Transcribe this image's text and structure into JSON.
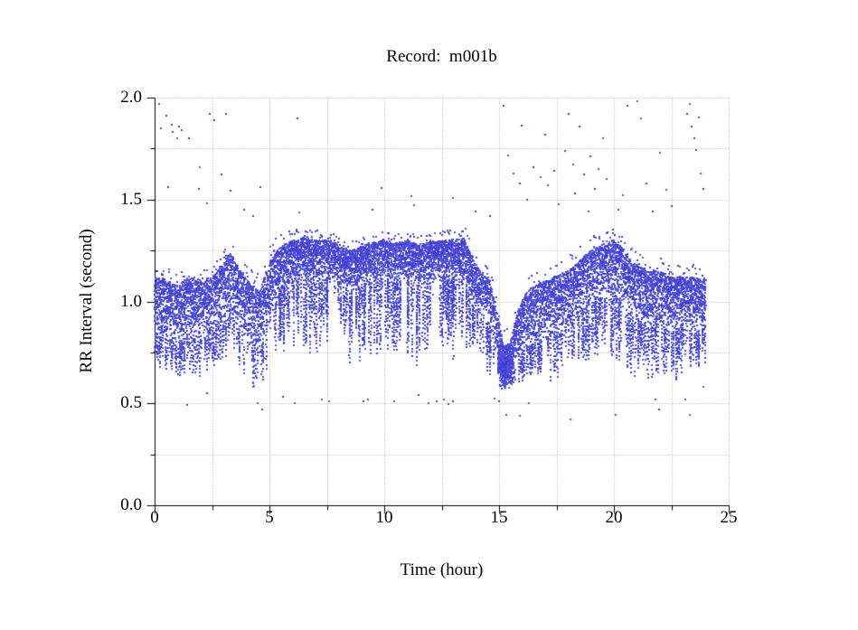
{
  "title": "Record:  m001b",
  "colors": {
    "point": "#3e3ed4",
    "point_light": "#5555de",
    "grid": "#a9a9a9",
    "axis": "#000000",
    "text": "#000000",
    "background": "#ffffff"
  },
  "chart_data": {
    "type": "scatter",
    "title": "Record:  m001b",
    "xlabel": "Time (hour)",
    "ylabel": "RR Interval (second)",
    "xlim": [
      0,
      25
    ],
    "ylim": [
      0.0,
      2.0
    ],
    "x_major_ticks": [
      0,
      5,
      10,
      15,
      20,
      25
    ],
    "x_tick_labels": [
      "0",
      "5",
      "10",
      "15",
      "20",
      "25"
    ],
    "x_minor_step": 2.5,
    "y_major_ticks": [
      0.0,
      0.5,
      1.0,
      1.5,
      2.0
    ],
    "y_tick_labels": [
      "0.0",
      "0.5",
      "1.0",
      "1.5",
      "2.0"
    ],
    "y_minor_step": 0.25,
    "grid": {
      "style": "dotted",
      "at_minor_ticks": true,
      "at_major_ticks": true
    },
    "data_time_range_hours": [
      0,
      24
    ],
    "description": "24-hour RR-interval tachogram. Dense band ~0.8-1.15 s during hours 0-4.5, elevated ~1.1-1.3 s during hours 5-13.5 with frequent short dips to 0.7-0.9 s, sharp bradycardia-like dip to ~0.6 s near hour 15-15.7, recovery ~0.8-1.1 s, rising again ~1.0-1.3 s hours 18.5-20.5, then ~0.85-1.15 s to hour 24. Sparse outliers at 1.45-2.0 s (mostly hours 0-3 and 15-24) and 0.42-0.58 s.",
    "band_profile_fields": [
      "t_hour",
      "core_low_s",
      "core_high_s",
      "top_s",
      "streak_min_s"
    ],
    "band_profile": [
      [
        0.0,
        0.85,
        1.12,
        1.18,
        0.7
      ],
      [
        0.5,
        0.82,
        1.1,
        1.16,
        0.65
      ],
      [
        1.0,
        0.8,
        1.08,
        1.15,
        0.62
      ],
      [
        1.5,
        0.85,
        1.12,
        1.18,
        0.66
      ],
      [
        2.0,
        0.82,
        1.1,
        1.16,
        0.6
      ],
      [
        2.5,
        0.85,
        1.12,
        1.18,
        0.64
      ],
      [
        3.0,
        0.9,
        1.18,
        1.25,
        0.68
      ],
      [
        3.3,
        0.95,
        1.24,
        1.3,
        0.72
      ],
      [
        3.7,
        0.88,
        1.15,
        1.22,
        0.66
      ],
      [
        4.2,
        0.78,
        1.08,
        1.16,
        0.58
      ],
      [
        4.6,
        0.74,
        1.05,
        1.14,
        0.55
      ],
      [
        5.0,
        0.95,
        1.2,
        1.28,
        0.7
      ],
      [
        5.5,
        1.05,
        1.27,
        1.33,
        0.75
      ],
      [
        6.0,
        1.1,
        1.3,
        1.35,
        0.78
      ],
      [
        6.5,
        1.12,
        1.31,
        1.36,
        0.75
      ],
      [
        7.0,
        1.1,
        1.3,
        1.35,
        0.72
      ],
      [
        7.5,
        1.12,
        1.3,
        1.34,
        0.8
      ],
      [
        8.0,
        1.1,
        1.28,
        1.33,
        0.72
      ],
      [
        8.5,
        1.05,
        1.25,
        1.3,
        0.68
      ],
      [
        9.0,
        1.08,
        1.27,
        1.32,
        0.7
      ],
      [
        9.5,
        1.1,
        1.29,
        1.34,
        0.75
      ],
      [
        10.0,
        1.12,
        1.3,
        1.35,
        0.72
      ],
      [
        10.5,
        1.1,
        1.28,
        1.33,
        0.75
      ],
      [
        11.0,
        1.12,
        1.3,
        1.35,
        0.7
      ],
      [
        11.5,
        1.08,
        1.28,
        1.33,
        0.68
      ],
      [
        12.0,
        1.1,
        1.29,
        1.35,
        0.72
      ],
      [
        12.5,
        1.12,
        1.3,
        1.34,
        0.74
      ],
      [
        13.0,
        1.1,
        1.3,
        1.36,
        0.7
      ],
      [
        13.5,
        1.12,
        1.31,
        1.38,
        0.75
      ],
      [
        13.8,
        1.0,
        1.22,
        1.28,
        0.78
      ],
      [
        14.2,
        0.92,
        1.15,
        1.22,
        0.75
      ],
      [
        14.6,
        0.88,
        1.1,
        1.18,
        0.6
      ],
      [
        14.9,
        0.7,
        0.95,
        1.05,
        0.58
      ],
      [
        15.2,
        0.6,
        0.78,
        0.9,
        0.57
      ],
      [
        15.5,
        0.62,
        0.8,
        0.95,
        0.58
      ],
      [
        15.8,
        0.72,
        0.95,
        1.05,
        0.6
      ],
      [
        16.2,
        0.78,
        1.05,
        1.12,
        0.62
      ],
      [
        16.6,
        0.8,
        1.08,
        1.15,
        0.65
      ],
      [
        17.0,
        0.82,
        1.1,
        1.16,
        0.62
      ],
      [
        17.5,
        0.85,
        1.12,
        1.18,
        0.6
      ],
      [
        18.0,
        0.88,
        1.15,
        1.22,
        0.65
      ],
      [
        18.5,
        0.95,
        1.2,
        1.28,
        0.7
      ],
      [
        19.0,
        1.0,
        1.25,
        1.32,
        0.72
      ],
      [
        19.5,
        1.02,
        1.28,
        1.33,
        0.75
      ],
      [
        20.0,
        1.05,
        1.3,
        1.35,
        0.72
      ],
      [
        20.3,
        1.0,
        1.28,
        1.33,
        0.7
      ],
      [
        20.7,
        0.95,
        1.2,
        1.28,
        0.65
      ],
      [
        21.0,
        0.92,
        1.18,
        1.25,
        0.62
      ],
      [
        21.5,
        0.88,
        1.15,
        1.2,
        0.6
      ],
      [
        22.0,
        0.9,
        1.15,
        1.22,
        0.62
      ],
      [
        22.5,
        0.85,
        1.12,
        1.18,
        0.58
      ],
      [
        23.0,
        0.88,
        1.12,
        1.18,
        0.62
      ],
      [
        23.5,
        0.85,
        1.12,
        1.18,
        0.65
      ],
      [
        24.0,
        0.88,
        1.1,
        1.15,
        0.7
      ]
    ],
    "dip_cluster": {
      "t_range": [
        14.95,
        15.65
      ],
      "v_range": [
        0.57,
        0.78
      ],
      "extra_points": 350
    },
    "density_dips": [
      {
        "t_range": [
          14.25,
          14.95
        ],
        "factor": 0.45
      }
    ],
    "outliers_high": [
      [
        0.2,
        1.97
      ],
      [
        0.25,
        1.85
      ],
      [
        0.5,
        1.91
      ],
      [
        0.6,
        1.56
      ],
      [
        0.75,
        1.87
      ],
      [
        0.8,
        1.83
      ],
      [
        1.0,
        1.8
      ],
      [
        1.05,
        1.86
      ],
      [
        1.2,
        1.84
      ],
      [
        1.5,
        1.8
      ],
      [
        1.9,
        1.55
      ],
      [
        2.0,
        1.66
      ],
      [
        2.3,
        1.48
      ],
      [
        2.4,
        1.92
      ],
      [
        2.6,
        1.89
      ],
      [
        2.9,
        1.62
      ],
      [
        3.1,
        1.92
      ],
      [
        3.3,
        1.54
      ],
      [
        3.9,
        1.45
      ],
      [
        4.3,
        1.42
      ],
      [
        4.6,
        1.56
      ],
      [
        6.2,
        1.9
      ],
      [
        6.3,
        1.44
      ],
      [
        9.5,
        1.45
      ],
      [
        9.9,
        1.56
      ],
      [
        11.2,
        1.52
      ],
      [
        11.3,
        1.47
      ],
      [
        13.0,
        1.51
      ],
      [
        14.0,
        1.44
      ],
      [
        14.6,
        1.42
      ],
      [
        15.2,
        1.96
      ],
      [
        15.4,
        1.72
      ],
      [
        15.6,
        1.63
      ],
      [
        15.9,
        1.58
      ],
      [
        16.0,
        1.86
      ],
      [
        16.2,
        1.5
      ],
      [
        16.5,
        1.66
      ],
      [
        16.8,
        1.61
      ],
      [
        17.0,
        1.82
      ],
      [
        17.1,
        1.57
      ],
      [
        17.4,
        1.64
      ],
      [
        17.6,
        1.48
      ],
      [
        17.9,
        1.74
      ],
      [
        18.0,
        1.92
      ],
      [
        18.2,
        1.67
      ],
      [
        18.3,
        1.53
      ],
      [
        18.5,
        1.86
      ],
      [
        18.7,
        1.62
      ],
      [
        18.9,
        1.44
      ],
      [
        19.0,
        1.71
      ],
      [
        19.2,
        1.55
      ],
      [
        19.3,
        1.65
      ],
      [
        19.5,
        1.8
      ],
      [
        19.7,
        1.6
      ],
      [
        20.2,
        1.45
      ],
      [
        20.4,
        1.52
      ],
      [
        20.6,
        1.96
      ],
      [
        21.0,
        1.98
      ],
      [
        21.2,
        1.9
      ],
      [
        21.4,
        1.58
      ],
      [
        21.7,
        1.44
      ],
      [
        22.0,
        1.73
      ],
      [
        22.3,
        1.55
      ],
      [
        22.5,
        1.47
      ],
      [
        23.2,
        1.92
      ],
      [
        23.3,
        1.97
      ],
      [
        23.4,
        1.86
      ],
      [
        23.5,
        1.8
      ],
      [
        23.6,
        1.74
      ],
      [
        23.7,
        1.9
      ],
      [
        23.8,
        1.63
      ],
      [
        23.9,
        1.55
      ]
    ],
    "outliers_low": [
      [
        1.4,
        0.49
      ],
      [
        2.3,
        0.55
      ],
      [
        4.5,
        0.5
      ],
      [
        4.7,
        0.47
      ],
      [
        5.6,
        0.53
      ],
      [
        6.1,
        0.5
      ],
      [
        7.3,
        0.52
      ],
      [
        7.6,
        0.51
      ],
      [
        9.1,
        0.51
      ],
      [
        9.3,
        0.52
      ],
      [
        10.4,
        0.51
      ],
      [
        11.5,
        0.54
      ],
      [
        11.9,
        0.5
      ],
      [
        12.3,
        0.51
      ],
      [
        12.6,
        0.52
      ],
      [
        12.8,
        0.5
      ],
      [
        13.0,
        0.51
      ],
      [
        14.8,
        0.52
      ],
      [
        15.0,
        0.51
      ],
      [
        15.3,
        0.44
      ],
      [
        15.9,
        0.44
      ],
      [
        16.3,
        0.5
      ],
      [
        18.1,
        0.42
      ],
      [
        20.1,
        0.44
      ],
      [
        21.8,
        0.52
      ],
      [
        22.0,
        0.47
      ],
      [
        23.1,
        0.52
      ],
      [
        23.3,
        0.44
      ],
      [
        23.9,
        0.58
      ]
    ]
  }
}
